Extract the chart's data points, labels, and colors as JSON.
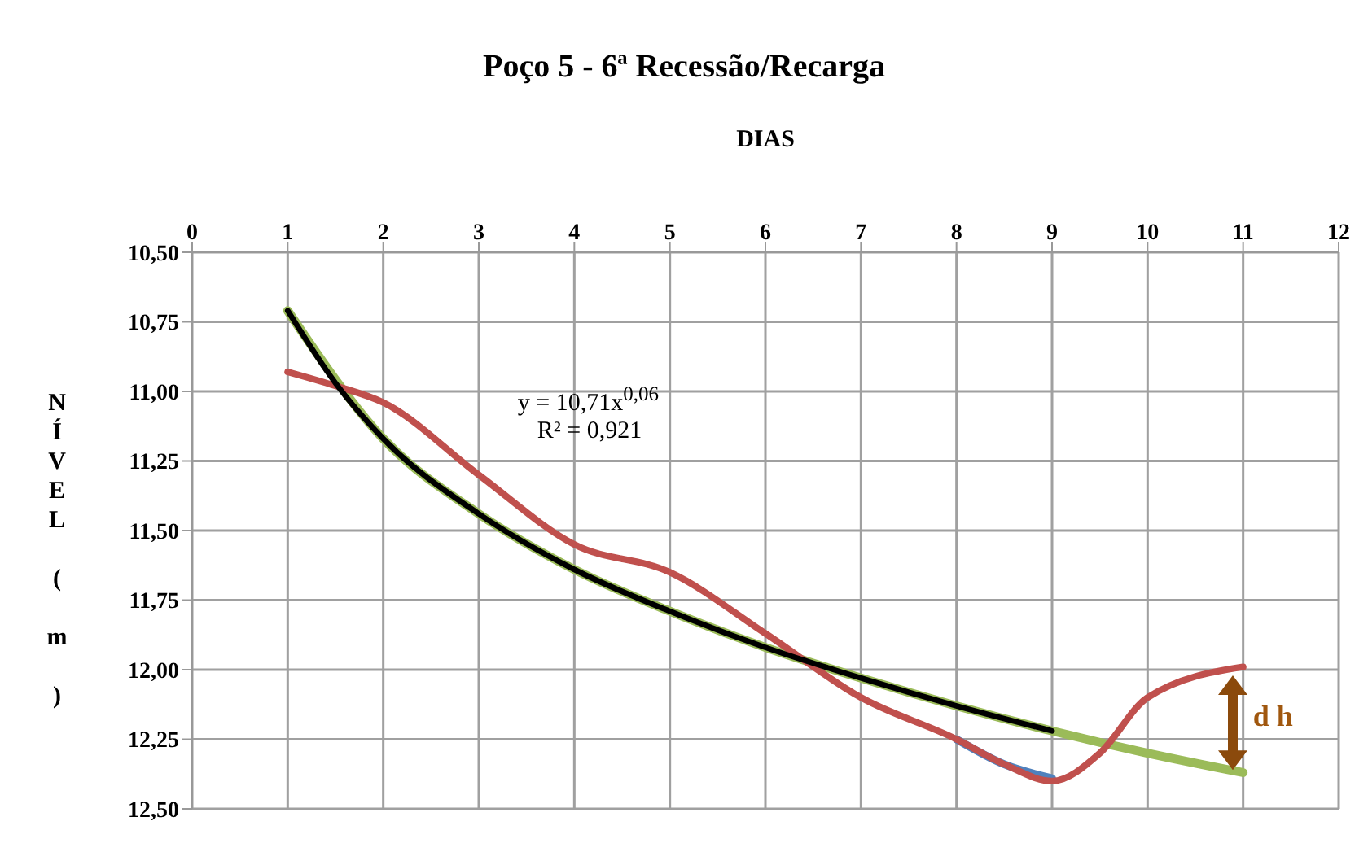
{
  "chart_data": {
    "type": "line",
    "title": "Poço 5 - 6ª Recessão/Recarga",
    "xlabel": "DIAS",
    "ylabel": "NÍVEL ( m )",
    "xlim": [
      0,
      12
    ],
    "xticks": [
      0,
      1,
      2,
      3,
      4,
      5,
      6,
      7,
      8,
      9,
      10,
      11,
      12
    ],
    "ylim": [
      12.5,
      10.5
    ],
    "yticks": [
      {
        "value": 10.5,
        "label": "10,50"
      },
      {
        "value": 10.75,
        "label": "10,75"
      },
      {
        "value": 11,
        "label": "11,00"
      },
      {
        "value": 11.25,
        "label": "11,25"
      },
      {
        "value": 11.5,
        "label": "11,50"
      },
      {
        "value": 11.75,
        "label": "11,75"
      },
      {
        "value": 12,
        "label": "12,00"
      },
      {
        "value": 12.25,
        "label": "12,25"
      },
      {
        "value": 12.5,
        "label": "12,50"
      }
    ],
    "grid": true,
    "marker": "none",
    "line_style": "solid",
    "series": [
      {
        "color": "#9bbb59",
        "x": [
          1,
          2,
          3,
          4,
          5,
          6,
          7,
          8,
          9,
          10,
          11
        ],
        "values": [
          10.71,
          11.17,
          11.44,
          11.64,
          11.79,
          11.92,
          12.03,
          12.13,
          12.22,
          12.3,
          12.37
        ]
      },
      {
        "color": "#4f81bd",
        "x": [
          8,
          8.5,
          9
        ],
        "values": [
          12.25,
          12.34,
          12.39
        ]
      },
      {
        "color": "#c0504d",
        "x": [
          1,
          1.5,
          2,
          3,
          4,
          5,
          6,
          7,
          8,
          8.5,
          9,
          9.5,
          10,
          11
        ],
        "values": [
          10.93,
          10.98,
          11.04,
          11.3,
          11.55,
          11.65,
          11.87,
          12.1,
          12.25,
          12.34,
          12.4,
          12.3,
          12.1,
          11.99
        ]
      },
      {
        "color": "#000000",
        "x": [
          1,
          1.5,
          2,
          3,
          4,
          5,
          6,
          7,
          8,
          9
        ],
        "values": [
          10.71,
          10.97,
          11.17,
          11.44,
          11.64,
          11.79,
          11.92,
          12.03,
          12.13,
          12.22
        ]
      }
    ],
    "annotations": [
      "y = 10,71x$^{0,06}$",
      "R² = 0,921",
      "d h"
    ]
  }
}
